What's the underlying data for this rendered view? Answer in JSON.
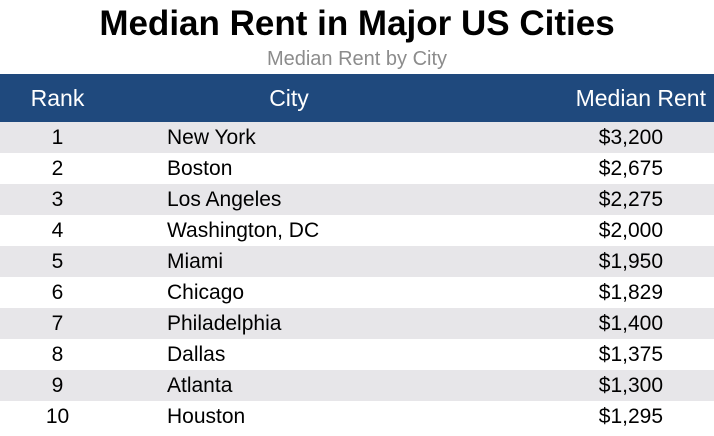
{
  "chart_data": {
    "type": "table",
    "title": "Median Rent in Major US Cities",
    "subtitle": "Median Rent by City",
    "columns": [
      "Rank",
      "City",
      "Median Rent"
    ],
    "rows": [
      {
        "rank": "1",
        "city": "New York",
        "rent": "$3,200"
      },
      {
        "rank": "2",
        "city": "Boston",
        "rent": "$2,675"
      },
      {
        "rank": "3",
        "city": "Los Angeles",
        "rent": "$2,275"
      },
      {
        "rank": "4",
        "city": "Washington, DC",
        "rent": "$2,000"
      },
      {
        "rank": "5",
        "city": "Miami",
        "rent": "$1,950"
      },
      {
        "rank": "6",
        "city": "Chicago",
        "rent": "$1,829"
      },
      {
        "rank": "7",
        "city": "Philadelphia",
        "rent": "$1,400"
      },
      {
        "rank": "8",
        "city": "Dallas",
        "rent": "$1,375"
      },
      {
        "rank": "9",
        "city": "Atlanta",
        "rent": "$1,300"
      },
      {
        "rank": "10",
        "city": "Houston",
        "rent": "$1,295"
      }
    ]
  },
  "colors": {
    "header_background": "#1f497d",
    "header_text": "#ffffff",
    "stripe": "#e7e6e9",
    "subtitle": "#8c8c8c"
  }
}
